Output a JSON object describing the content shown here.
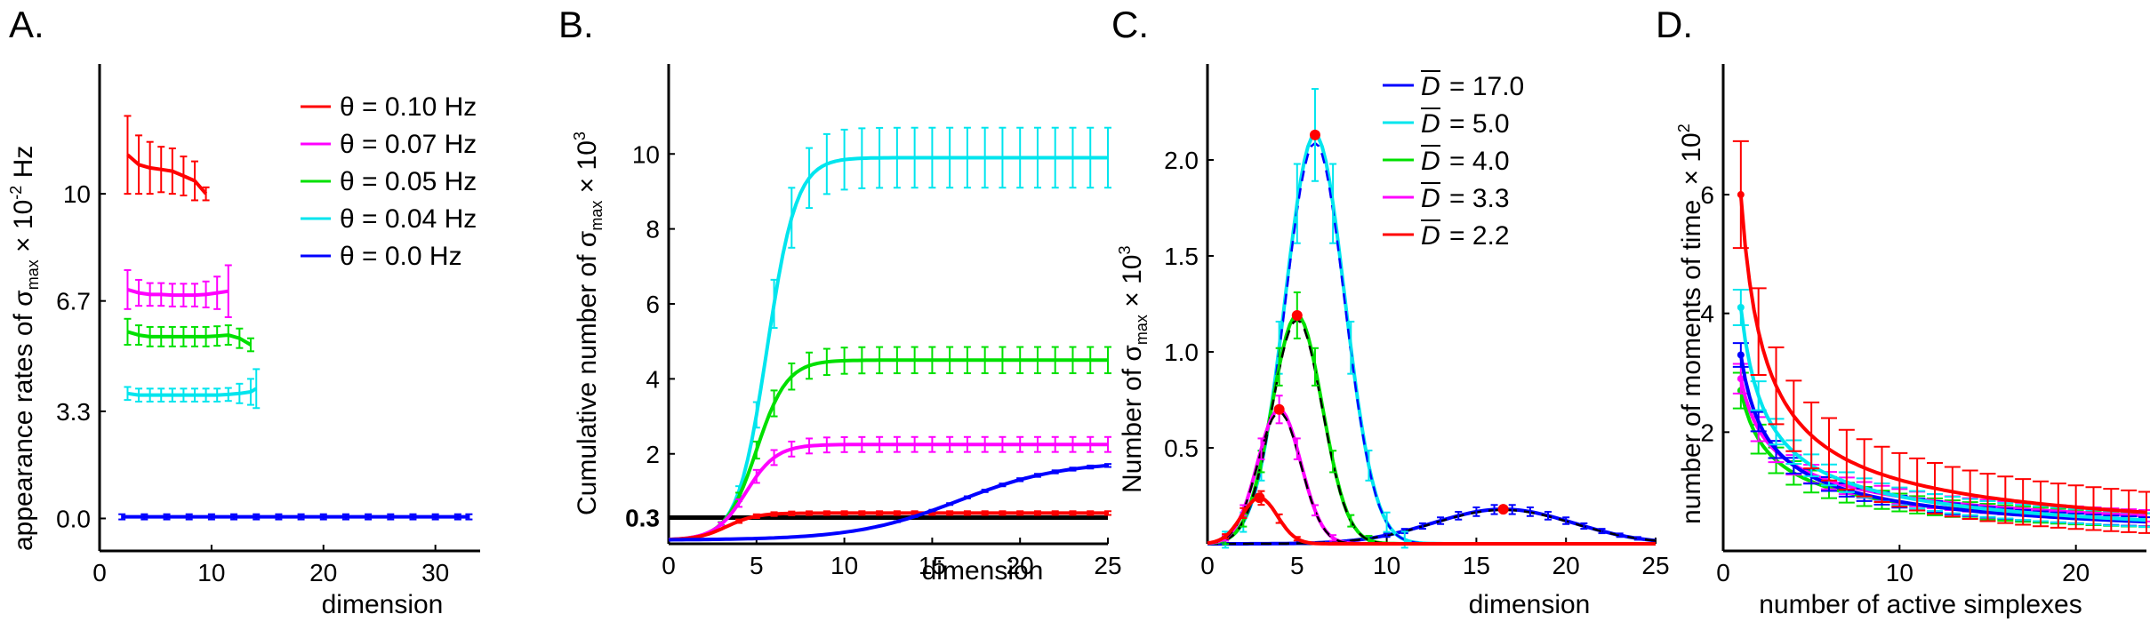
{
  "panels": [
    {
      "id": "A",
      "label": "A.",
      "type": "line",
      "xlabel": "dimension",
      "ylabel": "appearance rates of σmax × 10⁻² Hz",
      "ylabel_parts": {
        "prefix": "appearance rates of σ",
        "sub": "max",
        "mid": " × 10",
        "sup": "-2",
        "suffix": " Hz"
      },
      "xlim": [
        0,
        34
      ],
      "ylim": [
        -1,
        14
      ],
      "xticks": [
        {
          "v": 0,
          "label": "0"
        },
        {
          "v": 10,
          "label": "10"
        },
        {
          "v": 20,
          "label": "20"
        },
        {
          "v": 30,
          "label": "30"
        }
      ],
      "yticks": [
        {
          "v": 0,
          "label": "0.0"
        },
        {
          "v": 3.3,
          "label": "3.3"
        },
        {
          "v": 6.7,
          "label": "6.7"
        },
        {
          "v": 10,
          "label": "10"
        }
      ],
      "legend_position": "top-right",
      "series": [
        {
          "name": "θ = 0.10 Hz",
          "color": "#ff0000",
          "x": [
            2.5,
            3.5,
            4.5,
            5.5,
            6.5,
            7.5,
            8.5,
            9.5
          ],
          "y": [
            11.2,
            10.9,
            10.8,
            10.75,
            10.7,
            10.55,
            10.4,
            10.0
          ],
          "err": [
            1.2,
            0.9,
            0.8,
            0.7,
            0.7,
            0.6,
            0.6,
            0.2
          ]
        },
        {
          "name": "θ = 0.07 Hz",
          "color": "#ff00ff",
          "x": [
            2.5,
            3.5,
            4.5,
            5.5,
            6.5,
            7.5,
            8.5,
            9.5,
            10.5,
            11.5
          ],
          "y": [
            7.05,
            6.95,
            6.9,
            6.9,
            6.88,
            6.88,
            6.88,
            6.9,
            6.95,
            7.0
          ],
          "err": [
            0.6,
            0.4,
            0.35,
            0.35,
            0.35,
            0.35,
            0.35,
            0.4,
            0.5,
            0.8
          ]
        },
        {
          "name": "θ = 0.05 Hz",
          "color": "#00e000",
          "x": [
            2.5,
            3.5,
            4.5,
            5.5,
            6.5,
            7.5,
            8.5,
            9.5,
            10.5,
            11.5,
            12.5,
            13.5
          ],
          "y": [
            5.75,
            5.65,
            5.6,
            5.6,
            5.6,
            5.6,
            5.6,
            5.6,
            5.62,
            5.65,
            5.55,
            5.35
          ],
          "err": [
            0.4,
            0.3,
            0.3,
            0.3,
            0.3,
            0.3,
            0.3,
            0.3,
            0.3,
            0.3,
            0.3,
            0.2
          ]
        },
        {
          "name": "θ = 0.04 Hz",
          "color": "#00e5ee",
          "x": [
            2.5,
            3.5,
            4.5,
            5.5,
            6.5,
            7.5,
            8.5,
            9.5,
            10.5,
            11.5,
            12.5,
            13.5,
            14
          ],
          "y": [
            3.85,
            3.8,
            3.8,
            3.8,
            3.8,
            3.8,
            3.8,
            3.8,
            3.8,
            3.82,
            3.85,
            3.9,
            4.0
          ],
          "err": [
            0.2,
            0.2,
            0.2,
            0.2,
            0.2,
            0.2,
            0.2,
            0.2,
            0.2,
            0.2,
            0.3,
            0.4,
            0.6
          ]
        },
        {
          "name": "θ = 0.0 Hz",
          "color": "#0000ff",
          "x": [
            2,
            4,
            6,
            8,
            10,
            12,
            14,
            16,
            18,
            20,
            22,
            24,
            26,
            28,
            30,
            32,
            33
          ],
          "y": [
            0.05,
            0.05,
            0.05,
            0.05,
            0.05,
            0.05,
            0.05,
            0.05,
            0.05,
            0.05,
            0.05,
            0.05,
            0.05,
            0.05,
            0.05,
            0.05,
            0.05
          ],
          "err": [
            0.08,
            0.08,
            0.08,
            0.08,
            0.08,
            0.08,
            0.08,
            0.08,
            0.08,
            0.08,
            0.08,
            0.08,
            0.08,
            0.08,
            0.08,
            0.08,
            0.08
          ]
        }
      ]
    },
    {
      "id": "B",
      "label": "B.",
      "type": "line",
      "xlabel": "dimension",
      "ylabel": "Cumulative number of σmax × 10³",
      "ylabel_parts": {
        "prefix": "Cumulative number of σ",
        "sub": "max",
        "mid": " × 10",
        "sup": "3",
        "suffix": ""
      },
      "xlim": [
        0,
        25
      ],
      "ylim": [
        -0.4,
        12.4
      ],
      "xticks": [
        {
          "v": 0,
          "label": "0"
        },
        {
          "v": 5,
          "label": "5"
        },
        {
          "v": 10,
          "label": "10"
        },
        {
          "v": 15,
          "label": "15"
        },
        {
          "v": 20,
          "label": "20"
        },
        {
          "v": 25,
          "label": "25"
        }
      ],
      "yticks": [
        {
          "v": 0.3,
          "label": "0.3",
          "bold": true
        },
        {
          "v": 2,
          "label": "2"
        },
        {
          "v": 4,
          "label": "4"
        },
        {
          "v": 6,
          "label": "6"
        },
        {
          "v": 8,
          "label": "8"
        },
        {
          "v": 10,
          "label": "10"
        }
      ],
      "reference_line": {
        "y": 0.3,
        "color": "#000000"
      },
      "curves": [
        {
          "name": "θ = 0.04 Hz",
          "color": "#00e5ee",
          "A": 10.2,
          "x0": 5.6,
          "k": 1.2,
          "err": 0.8,
          "base": -0.3
        },
        {
          "name": "θ = 0.05 Hz",
          "color": "#00e000",
          "A": 4.8,
          "x0": 5.0,
          "k": 1.15,
          "err": 0.35,
          "base": -0.3
        },
        {
          "name": "θ = 0.07 Hz",
          "color": "#ff00ff",
          "A": 2.55,
          "x0": 4.4,
          "k": 1.15,
          "err": 0.2,
          "base": -0.3
        },
        {
          "name": "θ = 0.10 Hz",
          "color": "#ff0000",
          "A": 0.72,
          "x0": 3.3,
          "k": 1.2,
          "err": 0.05,
          "base": -0.3
        },
        {
          "name": "θ = 0.0 Hz",
          "color": "#0000ff",
          "A": 2.1,
          "x0": 16.5,
          "k": 0.34,
          "err": 0.04,
          "base": -0.3
        }
      ]
    },
    {
      "id": "C",
      "label": "C.",
      "type": "line",
      "xlabel": "dimension",
      "ylabel": "Number of σmax × 10³",
      "ylabel_parts": {
        "prefix": "Number of σ",
        "sub": "max",
        "mid": " × 10",
        "sup": "3",
        "suffix": ""
      },
      "xlim": [
        0,
        25
      ],
      "ylim": [
        0,
        2.5
      ],
      "xticks": [
        {
          "v": 0,
          "label": "0"
        },
        {
          "v": 5,
          "label": "5"
        },
        {
          "v": 10,
          "label": "10"
        },
        {
          "v": 15,
          "label": "15"
        },
        {
          "v": 20,
          "label": "20"
        },
        {
          "v": 25,
          "label": "25"
        }
      ],
      "yticks": [
        {
          "v": 0.5,
          "label": "0.5"
        },
        {
          "v": 1.0,
          "label": "1.0"
        },
        {
          "v": 1.5,
          "label": "1.5"
        },
        {
          "v": 2.0,
          "label": "2.0"
        }
      ],
      "legend_position": "top-right",
      "legend_prefix": "D",
      "curves": [
        {
          "name": "D̄ = 17.0",
          "value": "= 17.0",
          "color": "#0000ff",
          "A": 0.18,
          "mu": 16.5,
          "sigma": 3.9,
          "err": 0.02
        },
        {
          "name": "D̄ = 5.0",
          "value": "= 5.0",
          "color": "#00e5ee",
          "A": 2.13,
          "mu": 6.0,
          "sigma": 1.65,
          "err": 0.2
        },
        {
          "name": "D̄ = 4.0",
          "value": "= 4.0",
          "color": "#00e000",
          "A": 1.19,
          "mu": 5.0,
          "sigma": 1.4,
          "err": 0.1
        },
        {
          "name": "D̄ = 3.3",
          "value": "= 3.3",
          "color": "#ff00ff",
          "A": 0.7,
          "mu": 4.0,
          "sigma": 1.2,
          "err": 0.06
        },
        {
          "name": "D̄ = 2.2",
          "value": "= 2.2",
          "color": "#ff0000",
          "A": 0.24,
          "mu": 2.9,
          "sigma": 1.0,
          "err": 0.03
        }
      ]
    },
    {
      "id": "D",
      "label": "D.",
      "type": "line",
      "xlabel": "number of active simplexes",
      "ylabel": "number of moments of time × 10²",
      "ylabel_parts": {
        "prefix": "number of moments of time",
        "sub": "",
        "mid": " × 10",
        "sup": "2",
        "suffix": ""
      },
      "xlim": [
        0,
        24
      ],
      "ylim": [
        0,
        8.2
      ],
      "xticks": [
        {
          "v": 0,
          "label": "0"
        },
        {
          "v": 10,
          "label": "10"
        },
        {
          "v": 20,
          "label": "20"
        }
      ],
      "yticks": [
        {
          "v": 2,
          "label": "2"
        },
        {
          "v": 4,
          "label": "4"
        },
        {
          "v": 6,
          "label": "6"
        }
      ],
      "curves": [
        {
          "color": "#00e000",
          "A": 2.7,
          "p": 0.52,
          "err": 0.3
        },
        {
          "color": "#ff00ff",
          "A": 2.9,
          "p": 0.5,
          "err": 0.25
        },
        {
          "color": "#0000ff",
          "A": 3.3,
          "p": 0.6,
          "err": 0.2
        },
        {
          "color": "#00e5ee",
          "A": 4.1,
          "p": 0.65,
          "err": 0.3
        },
        {
          "color": "#ff0000",
          "A": 6.0,
          "p": 0.7,
          "err": 0.9
        }
      ]
    }
  ]
}
